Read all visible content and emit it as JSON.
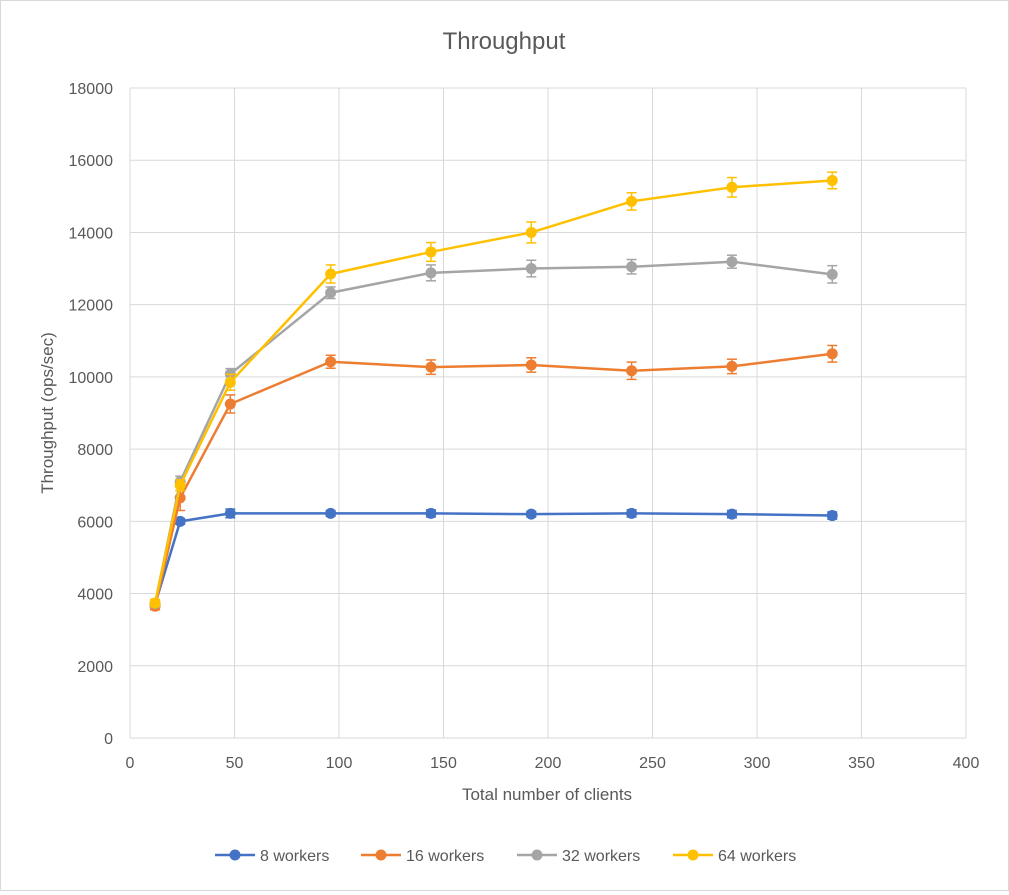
{
  "chart_data": {
    "type": "line",
    "title": "Throughput",
    "xlabel": "Total number of clients",
    "ylabel": "Throughput (ops/sec)",
    "xlim": [
      0,
      400
    ],
    "ylim": [
      0,
      18000
    ],
    "x_ticks": [
      0,
      50,
      100,
      150,
      200,
      250,
      300,
      350,
      400
    ],
    "y_ticks": [
      0,
      2000,
      4000,
      6000,
      8000,
      10000,
      12000,
      14000,
      16000,
      18000
    ],
    "grid": true,
    "error_bars": true,
    "legend_position": "bottom",
    "x": [
      12,
      24,
      48,
      96,
      144,
      192,
      240,
      288,
      336
    ],
    "series": [
      {
        "name": "8 workers",
        "color": "#4472C4",
        "values": [
          3700,
          6000,
          6220,
          6220,
          6220,
          6200,
          6220,
          6200,
          6160
        ],
        "errors": [
          80,
          80,
          120,
          80,
          100,
          80,
          100,
          100,
          100
        ]
      },
      {
        "name": "16 workers",
        "color": "#ED7D31",
        "values": [
          3650,
          6650,
          9250,
          10420,
          10270,
          10330,
          10170,
          10290,
          10640
        ],
        "errors": [
          100,
          350,
          250,
          180,
          200,
          200,
          240,
          200,
          230
        ]
      },
      {
        "name": "32 workers",
        "color": "#A5A5A5",
        "values": [
          3720,
          7100,
          10080,
          12330,
          12880,
          13000,
          13050,
          13190,
          12840
        ],
        "errors": [
          100,
          150,
          150,
          160,
          220,
          230,
          200,
          180,
          240
        ]
      },
      {
        "name": "64 workers",
        "color": "#FFC000",
        "values": [
          3740,
          7000,
          9850,
          12850,
          13460,
          14000,
          14860,
          15250,
          15440
        ],
        "errors": [
          100,
          150,
          220,
          250,
          260,
          290,
          240,
          270,
          230
        ]
      }
    ]
  }
}
